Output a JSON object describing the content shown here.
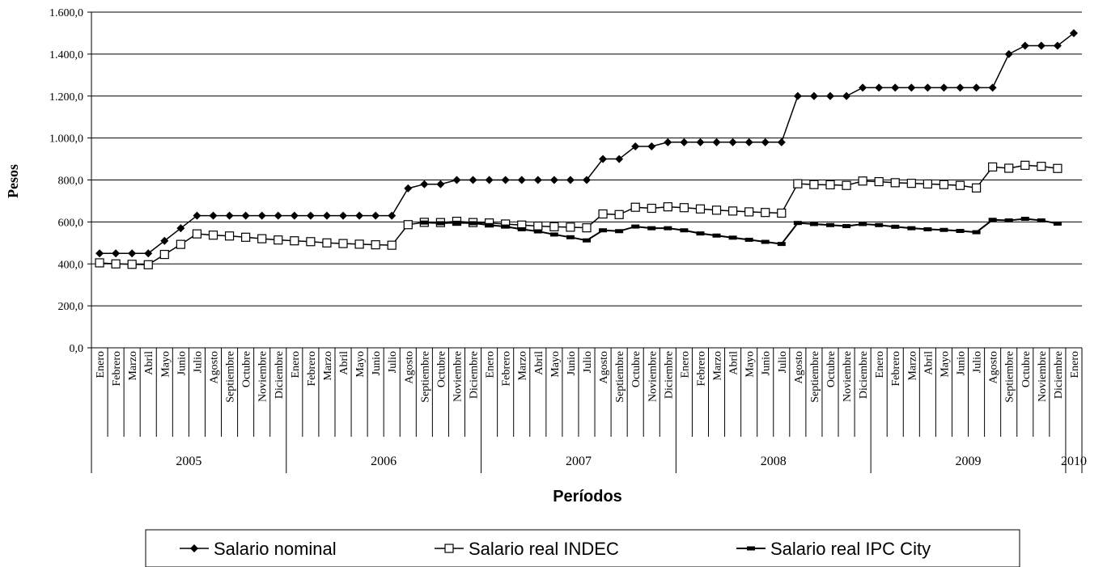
{
  "chart_data": {
    "type": "line",
    "xlabel": "Períodos",
    "ylabel": "Pesos",
    "ylim": [
      0,
      1600
    ],
    "y_ticks": [
      "0,0",
      "200,0",
      "400,0",
      "600,0",
      "800,0",
      "1.000,0",
      "1.200,0",
      "1.400,0",
      "1.600,0"
    ],
    "grid": true,
    "legend_position": "bottom",
    "years": [
      {
        "label": "2005",
        "months": [
          "Enero",
          "Febrero",
          "Marzo",
          "Abril",
          "Mayo",
          "Junio",
          "Julio",
          "Agosto",
          "Septiembre",
          "Octubre",
          "Noviembre",
          "Diciembre"
        ]
      },
      {
        "label": "2006",
        "months": [
          "Enero",
          "Febrero",
          "Marzo",
          "Abril",
          "Mayo",
          "Junio",
          "Julio",
          "Agosto",
          "Septiembre",
          "Octubre",
          "Noviembre",
          "Diciembre"
        ]
      },
      {
        "label": "2007",
        "months": [
          "Enero",
          "Febrero",
          "Marzo",
          "Abril",
          "Mayo",
          "Junio",
          "Julio",
          "Agosto",
          "Septiembre",
          "Octubre",
          "Noviembre",
          "Diciembre"
        ]
      },
      {
        "label": "2008",
        "months": [
          "Enero",
          "Febrero",
          "Marzo",
          "Abril",
          "Mayo",
          "Junio",
          "Julio",
          "Agosto",
          "Septiembre",
          "Octubre",
          "Noviembre",
          "Diciembre"
        ]
      },
      {
        "label": "2009",
        "months": [
          "Enero",
          "Febrero",
          "Marzo",
          "Abril",
          "Mayo",
          "Junio",
          "Julio",
          "Agosto",
          "Septiembre",
          "Octubre",
          "Noviembre",
          "Diciembre"
        ]
      },
      {
        "label": "2010",
        "months": [
          "Enero"
        ]
      }
    ],
    "series": [
      {
        "name": "Salario nominal",
        "marker": "diamond",
        "values": [
          450,
          450,
          450,
          450,
          510,
          570,
          630,
          630,
          630,
          630,
          630,
          630,
          630,
          630,
          630,
          630,
          630,
          630,
          630,
          760,
          780,
          780,
          800,
          800,
          800,
          800,
          800,
          800,
          800,
          800,
          800,
          900,
          900,
          960,
          960,
          980,
          980,
          980,
          980,
          980,
          980,
          980,
          980,
          1200,
          1200,
          1200,
          1200,
          1240,
          1240,
          1240,
          1240,
          1240,
          1240,
          1240,
          1240,
          1240,
          1400,
          1440,
          1440,
          1440,
          1500
        ]
      },
      {
        "name": "Salario real INDEC",
        "marker": "square-open",
        "values": [
          405,
          400,
          398,
          396,
          445,
          493,
          543,
          537,
          533,
          527,
          520,
          514,
          510,
          506,
          500,
          497,
          494,
          491,
          489,
          587,
          598,
          597,
          603,
          597,
          595,
          590,
          585,
          580,
          577,
          575,
          572,
          638,
          635,
          670,
          665,
          672,
          668,
          662,
          656,
          652,
          648,
          645,
          642,
          782,
          778,
          777,
          774,
          795,
          792,
          787,
          784,
          781,
          778,
          774,
          762,
          862,
          856,
          870,
          865,
          855,
          null
        ]
      },
      {
        "name": "Salario real IPC City",
        "marker": "dash",
        "values": [
          null,
          null,
          null,
          null,
          null,
          null,
          null,
          null,
          null,
          null,
          null,
          null,
          null,
          null,
          null,
          null,
          null,
          null,
          null,
          null,
          597,
          594,
          596,
          594,
          585,
          578,
          565,
          555,
          540,
          527,
          512,
          560,
          556,
          578,
          570,
          570,
          560,
          545,
          535,
          525,
          515,
          505,
          495,
          595,
          590,
          585,
          580,
          590,
          585,
          577,
          570,
          565,
          562,
          557,
          551,
          610,
          607,
          615,
          607,
          592,
          null
        ]
      }
    ]
  }
}
